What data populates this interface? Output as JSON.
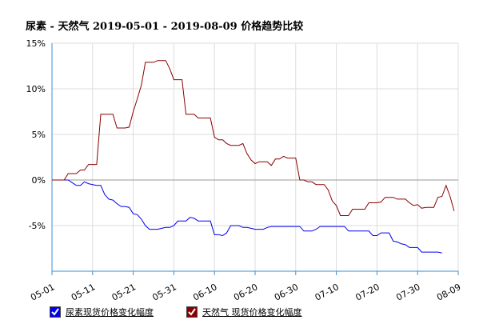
{
  "title": "尿素 - 天然气 2019-05-01 - 2019-08-09 价格趋势比较",
  "legend": {
    "urea": "尿素现货价格变化幅度",
    "gas": "天然气 现货价格变化幅度"
  },
  "colors": {
    "urea": "#0000ee",
    "gas": "#8b0000",
    "grid": "#dddddd",
    "axis": "#3b8fd6",
    "zero": "#999999"
  },
  "chart_data": {
    "type": "line",
    "title": "尿素 - 天然气 2019-05-01 - 2019-08-09 价格趋势比较",
    "xlabel": "",
    "ylabel": "",
    "x_ticks": [
      "05-01",
      "05-11",
      "05-21",
      "05-31",
      "06-10",
      "06-20",
      "06-30",
      "07-10",
      "07-20",
      "07-30",
      "08-09"
    ],
    "y_ticks": [
      "15%",
      "10%",
      "5%",
      "0%",
      "-5%"
    ],
    "xlim": [
      0,
      100
    ],
    "ylim": [
      -10,
      15
    ],
    "grid": true,
    "series": [
      {
        "name": "尿素现货价格变化幅度",
        "color": "#0000ee",
        "points": [
          [
            0,
            0
          ],
          [
            3,
            0
          ],
          [
            4,
            0
          ],
          [
            5,
            -0.3
          ],
          [
            6,
            -0.6
          ],
          [
            7,
            -0.6
          ],
          [
            8,
            -0.2
          ],
          [
            9,
            -0.4
          ],
          [
            10,
            -0.5
          ],
          [
            11,
            -0.6
          ],
          [
            12,
            -0.6
          ],
          [
            13,
            -1.6
          ],
          [
            14,
            -2.1
          ],
          [
            15,
            -2.2
          ],
          [
            16,
            -2.6
          ],
          [
            17,
            -2.9
          ],
          [
            18,
            -2.9
          ],
          [
            19,
            -3.0
          ],
          [
            20,
            -3.7
          ],
          [
            21,
            -3.8
          ],
          [
            22,
            -4.3
          ],
          [
            23,
            -5.0
          ],
          [
            24,
            -5.4
          ],
          [
            25,
            -5.4
          ],
          [
            26,
            -5.4
          ],
          [
            27,
            -5.3
          ],
          [
            28,
            -5.2
          ],
          [
            29,
            -5.2
          ],
          [
            30,
            -5.0
          ],
          [
            31,
            -4.5
          ],
          [
            32,
            -4.5
          ],
          [
            33,
            -4.5
          ],
          [
            34,
            -4.1
          ],
          [
            35,
            -4.2
          ],
          [
            36,
            -4.5
          ],
          [
            37,
            -4.5
          ],
          [
            38,
            -4.5
          ],
          [
            39,
            -4.5
          ],
          [
            40,
            -6.0
          ],
          [
            41,
            -6.0
          ],
          [
            42,
            -6.1
          ],
          [
            43,
            -5.8
          ],
          [
            44,
            -5.0
          ],
          [
            45,
            -5.0
          ],
          [
            46,
            -5.0
          ],
          [
            47,
            -5.2
          ],
          [
            48,
            -5.2
          ],
          [
            49,
            -5.3
          ],
          [
            50,
            -5.4
          ],
          [
            51,
            -5.4
          ],
          [
            52,
            -5.4
          ],
          [
            53,
            -5.2
          ],
          [
            54,
            -5.1
          ],
          [
            55,
            -5.1
          ],
          [
            56,
            -5.1
          ],
          [
            57,
            -5.1
          ],
          [
            58,
            -5.1
          ],
          [
            59,
            -5.1
          ],
          [
            60,
            -5.1
          ],
          [
            61,
            -5.1
          ],
          [
            62,
            -5.6
          ],
          [
            63,
            -5.6
          ],
          [
            64,
            -5.6
          ],
          [
            65,
            -5.4
          ],
          [
            66,
            -5.1
          ],
          [
            67,
            -5.1
          ],
          [
            68,
            -5.1
          ],
          [
            69,
            -5.1
          ],
          [
            70,
            -5.1
          ],
          [
            71,
            -5.1
          ],
          [
            72,
            -5.1
          ],
          [
            73,
            -5.6
          ],
          [
            74,
            -5.6
          ],
          [
            75,
            -5.6
          ],
          [
            76,
            -5.6
          ],
          [
            77,
            -5.6
          ],
          [
            78,
            -5.6
          ],
          [
            79,
            -6.1
          ],
          [
            80,
            -6.1
          ],
          [
            81,
            -5.8
          ],
          [
            82,
            -5.8
          ],
          [
            83,
            -5.8
          ],
          [
            84,
            -6.7
          ],
          [
            85,
            -6.8
          ],
          [
            86,
            -7.0
          ],
          [
            87,
            -7.1
          ],
          [
            88,
            -7.4
          ],
          [
            89,
            -7.4
          ],
          [
            90,
            -7.4
          ],
          [
            91,
            -7.9
          ],
          [
            92,
            -7.9
          ],
          [
            93,
            -7.9
          ],
          [
            94,
            -7.9
          ],
          [
            95,
            -7.9
          ],
          [
            96,
            -8.0
          ]
        ]
      },
      {
        "name": "天然气 现货价格变化幅度",
        "color": "#8b0000",
        "points": [
          [
            0,
            0
          ],
          [
            3,
            0
          ],
          [
            4,
            0.7
          ],
          [
            5,
            0.7
          ],
          [
            6,
            0.7
          ],
          [
            7,
            1.1
          ],
          [
            8,
            1.1
          ],
          [
            9,
            1.7
          ],
          [
            10,
            1.7
          ],
          [
            11,
            1.7
          ],
          [
            12,
            7.2
          ],
          [
            13,
            7.2
          ],
          [
            14,
            7.2
          ],
          [
            15,
            7.2
          ],
          [
            16,
            5.7
          ],
          [
            17,
            5.7
          ],
          [
            18,
            5.7
          ],
          [
            19,
            5.8
          ],
          [
            20,
            7.5
          ],
          [
            21,
            8.9
          ],
          [
            22,
            10.4
          ],
          [
            23,
            12.9
          ],
          [
            24,
            12.9
          ],
          [
            25,
            12.9
          ],
          [
            26,
            13.1
          ],
          [
            27,
            13.1
          ],
          [
            28,
            13.1
          ],
          [
            29,
            12.2
          ],
          [
            30,
            11.0
          ],
          [
            31,
            11.0
          ],
          [
            32,
            11.0
          ],
          [
            33,
            7.2
          ],
          [
            34,
            7.2
          ],
          [
            35,
            7.2
          ],
          [
            36,
            6.8
          ],
          [
            37,
            6.8
          ],
          [
            38,
            6.8
          ],
          [
            39,
            6.8
          ],
          [
            40,
            4.7
          ],
          [
            41,
            4.4
          ],
          [
            42,
            4.4
          ],
          [
            43,
            4.0
          ],
          [
            44,
            3.8
          ],
          [
            45,
            3.8
          ],
          [
            46,
            3.8
          ],
          [
            47,
            4.0
          ],
          [
            48,
            2.9
          ],
          [
            49,
            2.2
          ],
          [
            50,
            1.8
          ],
          [
            51,
            2.0
          ],
          [
            52,
            2.0
          ],
          [
            53,
            2.0
          ],
          [
            54,
            1.6
          ],
          [
            55,
            2.3
          ],
          [
            56,
            2.3
          ],
          [
            57,
            2.6
          ],
          [
            58,
            2.4
          ],
          [
            59,
            2.4
          ],
          [
            60,
            2.4
          ],
          [
            61,
            0
          ],
          [
            62,
            0
          ],
          [
            63,
            -0.2
          ],
          [
            64,
            -0.2
          ],
          [
            65,
            -0.5
          ],
          [
            66,
            -0.5
          ],
          [
            67,
            -0.5
          ],
          [
            68,
            -1.1
          ],
          [
            69,
            -2.3
          ],
          [
            70,
            -2.8
          ],
          [
            71,
            -3.9
          ],
          [
            72,
            -3.9
          ],
          [
            73,
            -3.9
          ],
          [
            74,
            -3.2
          ],
          [
            75,
            -3.2
          ],
          [
            76,
            -3.2
          ],
          [
            77,
            -3.2
          ],
          [
            78,
            -2.5
          ],
          [
            79,
            -2.5
          ],
          [
            80,
            -2.5
          ],
          [
            81,
            -2.4
          ],
          [
            82,
            -1.9
          ],
          [
            83,
            -1.9
          ],
          [
            84,
            -1.9
          ],
          [
            85,
            -2.1
          ],
          [
            86,
            -2.1
          ],
          [
            87,
            -2.1
          ],
          [
            88,
            -2.5
          ],
          [
            89,
            -2.8
          ],
          [
            90,
            -2.7
          ],
          [
            91,
            -3.1
          ],
          [
            92,
            -3.0
          ],
          [
            93,
            -3.0
          ],
          [
            94,
            -3.0
          ],
          [
            95,
            -1.9
          ],
          [
            96,
            -1.8
          ],
          [
            97,
            -0.6
          ],
          [
            98,
            -1.8
          ],
          [
            99,
            -3.4
          ]
        ]
      }
    ]
  }
}
